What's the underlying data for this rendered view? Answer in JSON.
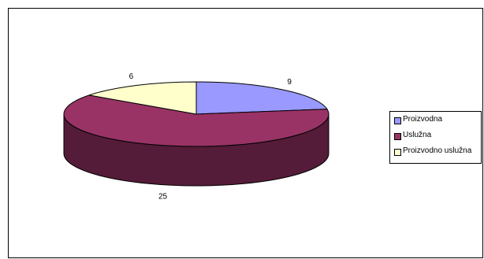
{
  "chart_data": {
    "type": "pie",
    "title": "",
    "labels": [
      "Proizvodna",
      "Uslužna",
      "Proizvodno uslužna"
    ],
    "values": [
      9,
      25,
      6
    ],
    "colors": [
      "#9999ff",
      "#993366",
      "#ffffcc"
    ],
    "legend_position": "right",
    "grid": false
  }
}
